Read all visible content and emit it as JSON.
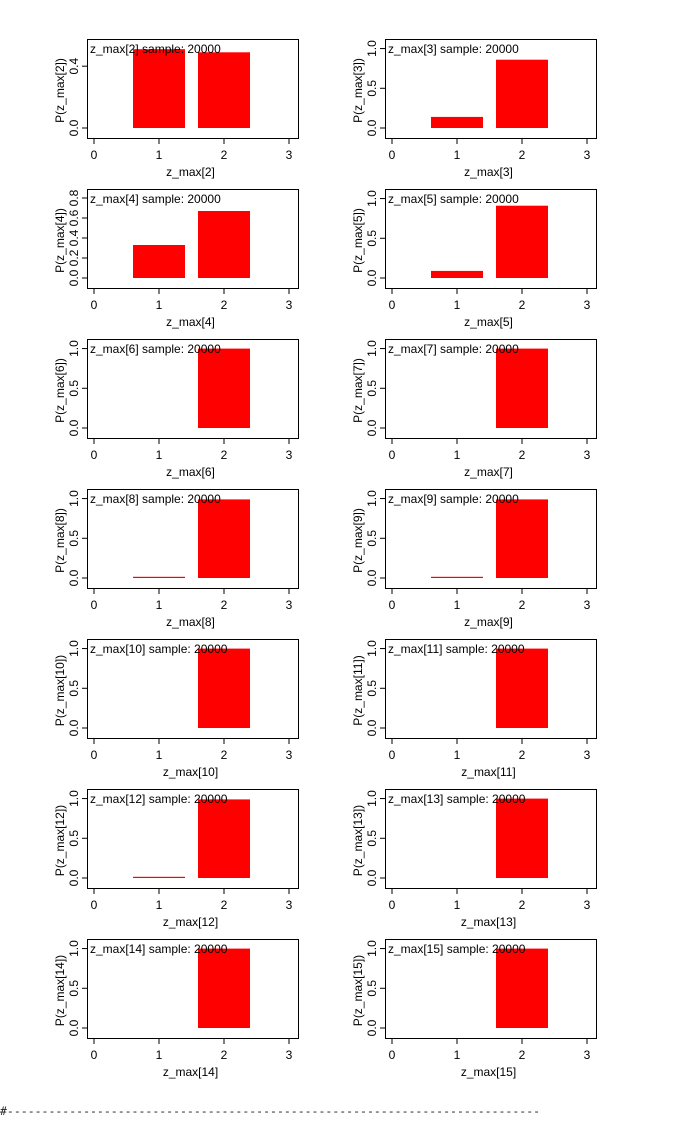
{
  "chart_data": [
    {
      "type": "bar",
      "title": "z_max[2] sample: 20000",
      "xlabel": "z_max[2]",
      "ylabel": "P(z_max[2])",
      "categories": [
        1,
        2
      ],
      "values": [
        0.51,
        0.49
      ],
      "xlim": [
        0,
        3
      ],
      "ylim": [
        0,
        0.55
      ],
      "xticks": [
        "0",
        "1",
        "2",
        "3"
      ],
      "yticks": [
        "0.0",
        "0.4"
      ],
      "ytick_values": [
        0,
        0.4
      ]
    },
    {
      "type": "bar",
      "title": "z_max[3] sample: 20000",
      "xlabel": "z_max[3]",
      "ylabel": "P(z_max[3])",
      "categories": [
        1,
        2
      ],
      "values": [
        0.14,
        0.86
      ],
      "xlim": [
        0,
        3
      ],
      "ylim": [
        0,
        1.07
      ],
      "xticks": [
        "0",
        "1",
        "2",
        "3"
      ],
      "yticks": [
        "0.0",
        "0.5",
        "1.0"
      ],
      "ytick_values": [
        0,
        0.5,
        1
      ]
    },
    {
      "type": "bar",
      "title": "z_max[4] sample: 20000",
      "xlabel": "z_max[4]",
      "ylabel": "P(z_max[4])",
      "categories": [
        1,
        2
      ],
      "values": [
        0.33,
        0.67
      ],
      "xlim": [
        0,
        3
      ],
      "ylim": [
        0,
        0.85
      ],
      "xticks": [
        "0",
        "1",
        "2",
        "3"
      ],
      "yticks": [
        "0.0",
        "0.2",
        "0.4",
        "0.6",
        "0.8"
      ],
      "ytick_values": [
        0,
        0.2,
        0.4,
        0.6,
        0.8
      ]
    },
    {
      "type": "bar",
      "title": "z_max[5] sample: 20000",
      "xlabel": "z_max[5]",
      "ylabel": "P(z_max[5])",
      "categories": [
        1,
        2
      ],
      "values": [
        0.09,
        0.91
      ],
      "xlim": [
        0,
        3
      ],
      "ylim": [
        0,
        1.07
      ],
      "xticks": [
        "0",
        "1",
        "2",
        "3"
      ],
      "yticks": [
        "0.0",
        "0.5",
        "1.0"
      ],
      "ytick_values": [
        0,
        0.5,
        1
      ]
    },
    {
      "type": "bar",
      "title": "z_max[6] sample: 20000",
      "xlabel": "z_max[6]",
      "ylabel": "P(z_max[6])",
      "categories": [
        1,
        2
      ],
      "values": [
        0,
        1.0
      ],
      "xlim": [
        0,
        3
      ],
      "ylim": [
        0,
        1.07
      ],
      "xticks": [
        "0",
        "1",
        "2",
        "3"
      ],
      "yticks": [
        "0.0",
        "0.5",
        "1.0"
      ],
      "ytick_values": [
        0,
        0.5,
        1
      ]
    },
    {
      "type": "bar",
      "title": "z_max[7] sample: 20000",
      "xlabel": "z_max[7]",
      "ylabel": "P(z_max[7])",
      "categories": [
        1,
        2
      ],
      "values": [
        0,
        1.0
      ],
      "xlim": [
        0,
        3
      ],
      "ylim": [
        0,
        1.07
      ],
      "xticks": [
        "0",
        "1",
        "2",
        "3"
      ],
      "yticks": [
        "0.0",
        "0.5",
        "1.0"
      ],
      "ytick_values": [
        0,
        0.5,
        1
      ]
    },
    {
      "type": "bar",
      "title": "z_max[8] sample: 20000",
      "xlabel": "z_max[8]",
      "ylabel": "P(z_max[8])",
      "categories": [
        1,
        2
      ],
      "values": [
        0.01,
        0.99
      ],
      "xlim": [
        0,
        3
      ],
      "ylim": [
        0,
        1.07
      ],
      "xticks": [
        "0",
        "1",
        "2",
        "3"
      ],
      "yticks": [
        "0.0",
        "0.5",
        "1.0"
      ],
      "ytick_values": [
        0,
        0.5,
        1
      ]
    },
    {
      "type": "bar",
      "title": "z_max[9] sample: 20000",
      "xlabel": "z_max[9]",
      "ylabel": "P(z_max[9])",
      "categories": [
        1,
        2
      ],
      "values": [
        0.01,
        0.99
      ],
      "xlim": [
        0,
        3
      ],
      "ylim": [
        0,
        1.07
      ],
      "xticks": [
        "0",
        "1",
        "2",
        "3"
      ],
      "yticks": [
        "0.0",
        "0.5",
        "1.0"
      ],
      "ytick_values": [
        0,
        0.5,
        1
      ]
    },
    {
      "type": "bar",
      "title": "z_max[10] sample: 20000",
      "xlabel": "z_max[10]",
      "ylabel": "P(z_max[10])",
      "categories": [
        1,
        2
      ],
      "values": [
        0,
        1.0
      ],
      "xlim": [
        0,
        3
      ],
      "ylim": [
        0,
        1.07
      ],
      "xticks": [
        "0",
        "1",
        "2",
        "3"
      ],
      "yticks": [
        "0.0",
        "0.5",
        "1.0"
      ],
      "ytick_values": [
        0,
        0.5,
        1
      ]
    },
    {
      "type": "bar",
      "title": "z_max[11] sample: 20000",
      "xlabel": "z_max[11]",
      "ylabel": "P(z_max[11])",
      "categories": [
        1,
        2
      ],
      "values": [
        0,
        1.0
      ],
      "xlim": [
        0,
        3
      ],
      "ylim": [
        0,
        1.07
      ],
      "xticks": [
        "0",
        "1",
        "2",
        "3"
      ],
      "yticks": [
        "0.0",
        "0.5",
        "1.0"
      ],
      "ytick_values": [
        0,
        0.5,
        1
      ]
    },
    {
      "type": "bar",
      "title": "z_max[12] sample: 20000",
      "xlabel": "z_max[12]",
      "ylabel": "P(z_max[12])",
      "categories": [
        1,
        2
      ],
      "values": [
        0.01,
        0.99
      ],
      "xlim": [
        0,
        3
      ],
      "ylim": [
        0,
        1.07
      ],
      "xticks": [
        "0",
        "1",
        "2",
        "3"
      ],
      "yticks": [
        "0.0",
        "0.5",
        "1.0"
      ],
      "ytick_values": [
        0,
        0.5,
        1
      ]
    },
    {
      "type": "bar",
      "title": "z_max[13] sample: 20000",
      "xlabel": "z_max[13]",
      "ylabel": "P(z_max[13])",
      "categories": [
        1,
        2
      ],
      "values": [
        0,
        1.0
      ],
      "xlim": [
        0,
        3
      ],
      "ylim": [
        0,
        1.07
      ],
      "xticks": [
        "0",
        "1",
        "2",
        "3"
      ],
      "yticks": [
        "0.0",
        "0.5",
        "1.0"
      ],
      "ytick_values": [
        0,
        0.5,
        1
      ]
    },
    {
      "type": "bar",
      "title": "z_max[14] sample: 20000",
      "xlabel": "z_max[14]",
      "ylabel": "P(z_max[14])",
      "categories": [
        1,
        2
      ],
      "values": [
        0,
        1.0
      ],
      "xlim": [
        0,
        3
      ],
      "ylim": [
        0,
        1.07
      ],
      "xticks": [
        "0",
        "1",
        "2",
        "3"
      ],
      "yticks": [
        "0.0",
        "0.5",
        "1.0"
      ],
      "ytick_values": [
        0,
        0.5,
        1
      ]
    },
    {
      "type": "bar",
      "title": "z_max[15] sample: 20000",
      "xlabel": "z_max[15]",
      "ylabel": "P(z_max[15])",
      "categories": [
        1,
        2
      ],
      "values": [
        0,
        1.0
      ],
      "xlim": [
        0,
        3
      ],
      "ylim": [
        0,
        1.07
      ],
      "xticks": [
        "0",
        "1",
        "2",
        "3"
      ],
      "yticks": [
        "0.0",
        "0.5",
        "1.0"
      ],
      "ytick_values": [
        0,
        0.5,
        1
      ]
    }
  ],
  "colors": {
    "bar": "#ff0000",
    "axis": "#000000"
  },
  "footer": {
    "text": "#-----------------------------------------------------------------------------"
  }
}
